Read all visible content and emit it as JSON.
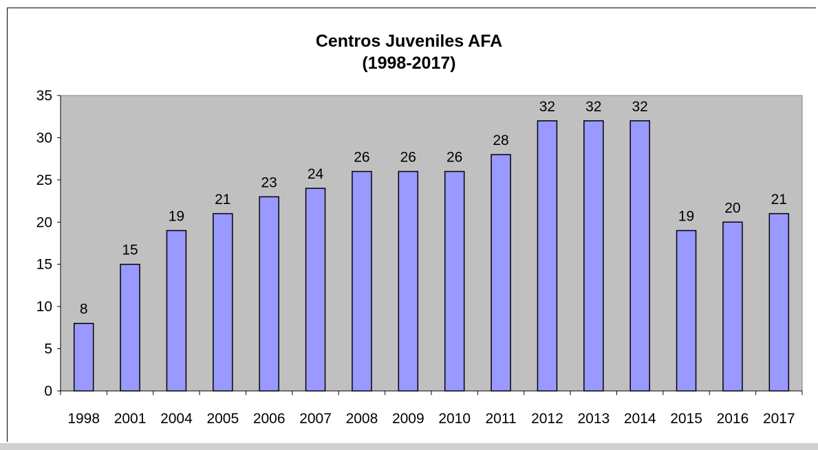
{
  "chart_data": {
    "type": "bar",
    "title": "Centros Juveniles AFA",
    "subtitle": "(1998-2017)",
    "categories": [
      "1998",
      "2001",
      "2004",
      "2005",
      "2006",
      "2007",
      "2008",
      "2009",
      "2010",
      "2011",
      "2012",
      "2013",
      "2014",
      "2015",
      "2016",
      "2017"
    ],
    "values": [
      8,
      15,
      19,
      21,
      23,
      24,
      26,
      26,
      26,
      28,
      32,
      32,
      32,
      19,
      20,
      21
    ],
    "ylim": [
      0,
      35
    ],
    "yticks": [
      0,
      5,
      10,
      15,
      20,
      25,
      30,
      35
    ],
    "grid": false,
    "legend": "none",
    "data_labels": true,
    "colors": {
      "bar_fill": "#9999ff",
      "bar_stroke": "#000000",
      "plot_background": "#c0c0c0"
    }
  }
}
